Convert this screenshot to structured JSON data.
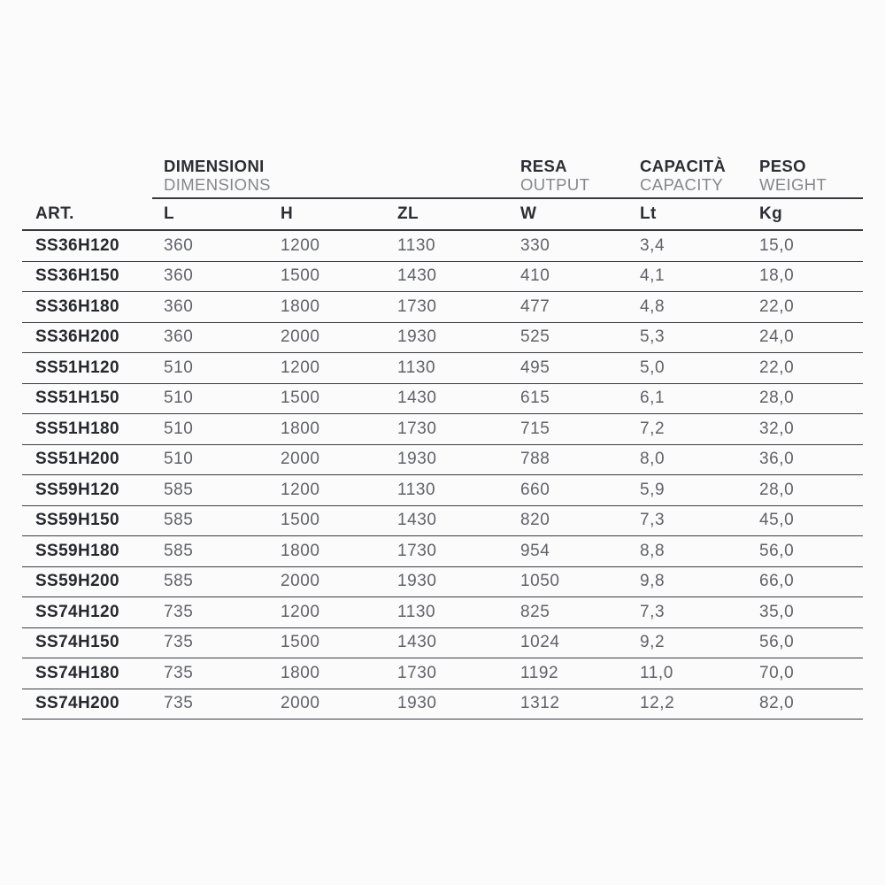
{
  "table": {
    "column_groups": [
      {
        "label_it": "DIMENSIONI",
        "label_en": "DIMENSIONS"
      },
      {
        "label_it": "RESA",
        "label_en": "OUTPUT"
      },
      {
        "label_it": "CAPACITÀ",
        "label_en": "CAPACITY"
      },
      {
        "label_it": "PESO",
        "label_en": "WEIGHT"
      }
    ],
    "columns": [
      "ART.",
      "L",
      "H",
      "ZL",
      "W",
      "Lt",
      "Kg"
    ],
    "rows": [
      [
        "SS36H120",
        "360",
        "1200",
        "1130",
        "330",
        "3,4",
        "15,0"
      ],
      [
        "SS36H150",
        "360",
        "1500",
        "1430",
        "410",
        "4,1",
        "18,0"
      ],
      [
        "SS36H180",
        "360",
        "1800",
        "1730",
        "477",
        "4,8",
        "22,0"
      ],
      [
        "SS36H200",
        "360",
        "2000",
        "1930",
        "525",
        "5,3",
        "24,0"
      ],
      [
        "SS51H120",
        "510",
        "1200",
        "1130",
        "495",
        "5,0",
        "22,0"
      ],
      [
        "SS51H150",
        "510",
        "1500",
        "1430",
        "615",
        "6,1",
        "28,0"
      ],
      [
        "SS51H180",
        "510",
        "1800",
        "1730",
        "715",
        "7,2",
        "32,0"
      ],
      [
        "SS51H200",
        "510",
        "2000",
        "1930",
        "788",
        "8,0",
        "36,0"
      ],
      [
        "SS59H120",
        "585",
        "1200",
        "1130",
        "660",
        "5,9",
        "28,0"
      ],
      [
        "SS59H150",
        "585",
        "1500",
        "1430",
        "820",
        "7,3",
        "45,0"
      ],
      [
        "SS59H180",
        "585",
        "1800",
        "1730",
        "954",
        "8,8",
        "56,0"
      ],
      [
        "SS59H200",
        "585",
        "2000",
        "1930",
        "1050",
        "9,8",
        "66,0"
      ],
      [
        "SS74H120",
        "735",
        "1200",
        "1130",
        "825",
        "7,3",
        "35,0"
      ],
      [
        "SS74H150",
        "735",
        "1500",
        "1430",
        "1024",
        "9,2",
        "56,0"
      ],
      [
        "SS74H180",
        "735",
        "1800",
        "1730",
        "1192",
        "11,0",
        "70,0"
      ],
      [
        "SS74H200",
        "735",
        "2000",
        "1930",
        "1312",
        "12,2",
        "82,0"
      ]
    ],
    "colors": {
      "primary_text": "#2c2e33",
      "secondary_text": "#85878c",
      "value_text": "#606268",
      "rule_lines": "#35373c",
      "background": "#fbfbfb"
    }
  }
}
